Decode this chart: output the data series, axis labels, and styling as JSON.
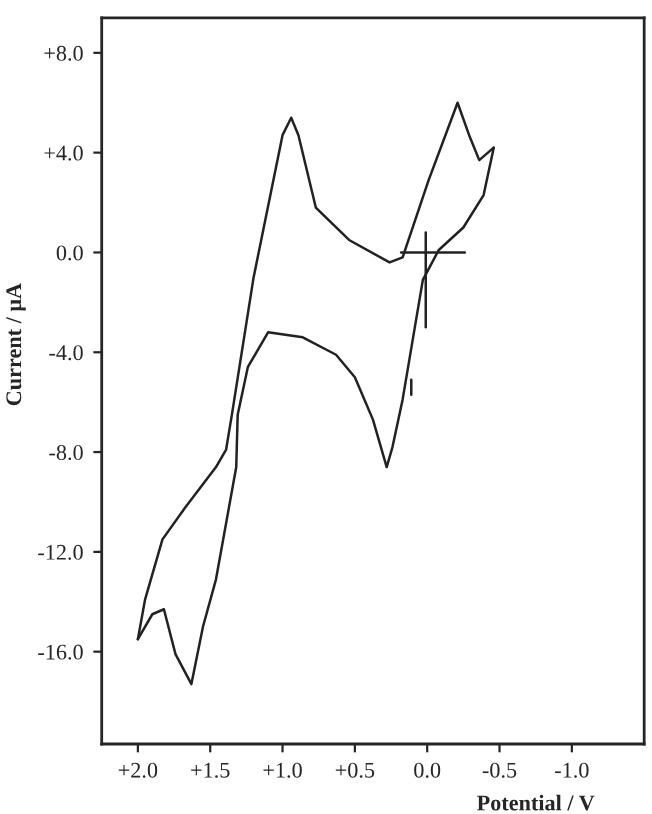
{
  "chart_data": {
    "type": "line",
    "xlabel": "Potential / V",
    "ylabel": "Current / μA",
    "xlim": [
      2.25,
      -1.5
    ],
    "ylim": [
      -19.7,
      9.4
    ],
    "xticks": [
      {
        "value": 2.0,
        "label": "+2.0"
      },
      {
        "value": 1.5,
        "label": "+1.5"
      },
      {
        "value": 1.0,
        "label": "+1.0"
      },
      {
        "value": 0.5,
        "label": "+0.5"
      },
      {
        "value": 0.0,
        "label": "0.0"
      },
      {
        "value": -0.5,
        "label": "-0.5"
      },
      {
        "value": -1.0,
        "label": "-1.0"
      }
    ],
    "yticks": [
      {
        "value": 8,
        "label": "+8.0"
      },
      {
        "value": 4,
        "label": "+4.0"
      },
      {
        "value": 0,
        "label": "0.0"
      },
      {
        "value": -4,
        "label": "-4.0"
      },
      {
        "value": -8,
        "label": "-8.0"
      },
      {
        "value": -12,
        "label": "-12.0"
      },
      {
        "value": -16,
        "label": "-16.0"
      }
    ],
    "grid": false,
    "marker": "none",
    "line_style": "solid",
    "series": [
      {
        "color": "#222222",
        "x": [
          -0.46,
          -0.39,
          -0.25,
          -0.08,
          0.03,
          0.17,
          0.24,
          0.28,
          0.32,
          0.375,
          0.5,
          0.63,
          0.86,
          1.1,
          1.24,
          1.31,
          1.32,
          1.46,
          1.55,
          1.63,
          1.74,
          1.82,
          1.9,
          2.0
        ],
        "values": [
          4.2,
          2.3,
          1.0,
          0.1,
          -1.1,
          -5.9,
          -7.8,
          -8.6,
          -7.8,
          -6.7,
          -5.0,
          -4.1,
          -3.4,
          -3.2,
          -4.6,
          -6.5,
          -8.6,
          -13.1,
          -15.0,
          -17.3,
          -16.1,
          -14.3,
          -14.5,
          -15.5
        ]
      },
      {
        "color": "#222222",
        "x": [
          2.0,
          1.95,
          1.83,
          1.67,
          1.46,
          1.39,
          1.35,
          1.2,
          1.0,
          0.94,
          0.89,
          0.77,
          0.54,
          0.26,
          0.17,
          -0.01,
          -0.21,
          -0.29,
          -0.36,
          -0.46
        ],
        "values": [
          -15.5,
          -13.9,
          -11.5,
          -10.2,
          -8.6,
          -7.9,
          -6.5,
          -1.0,
          4.7,
          5.4,
          4.7,
          1.8,
          0.5,
          -0.4,
          -0.2,
          2.9,
          6.0,
          4.7,
          3.7,
          4.2
        ]
      },
      {
        "color": "#222222",
        "x": [
          0.18,
          -0.26
        ],
        "values": [
          0,
          0
        ]
      },
      {
        "color": "#222222",
        "x": [
          0.01,
          0.01
        ],
        "values": [
          0.8,
          -3.0
        ]
      },
      {
        "color": "#222222",
        "x": [
          0.11,
          0.11
        ],
        "values": [
          -5.1,
          -5.7
        ]
      }
    ]
  }
}
